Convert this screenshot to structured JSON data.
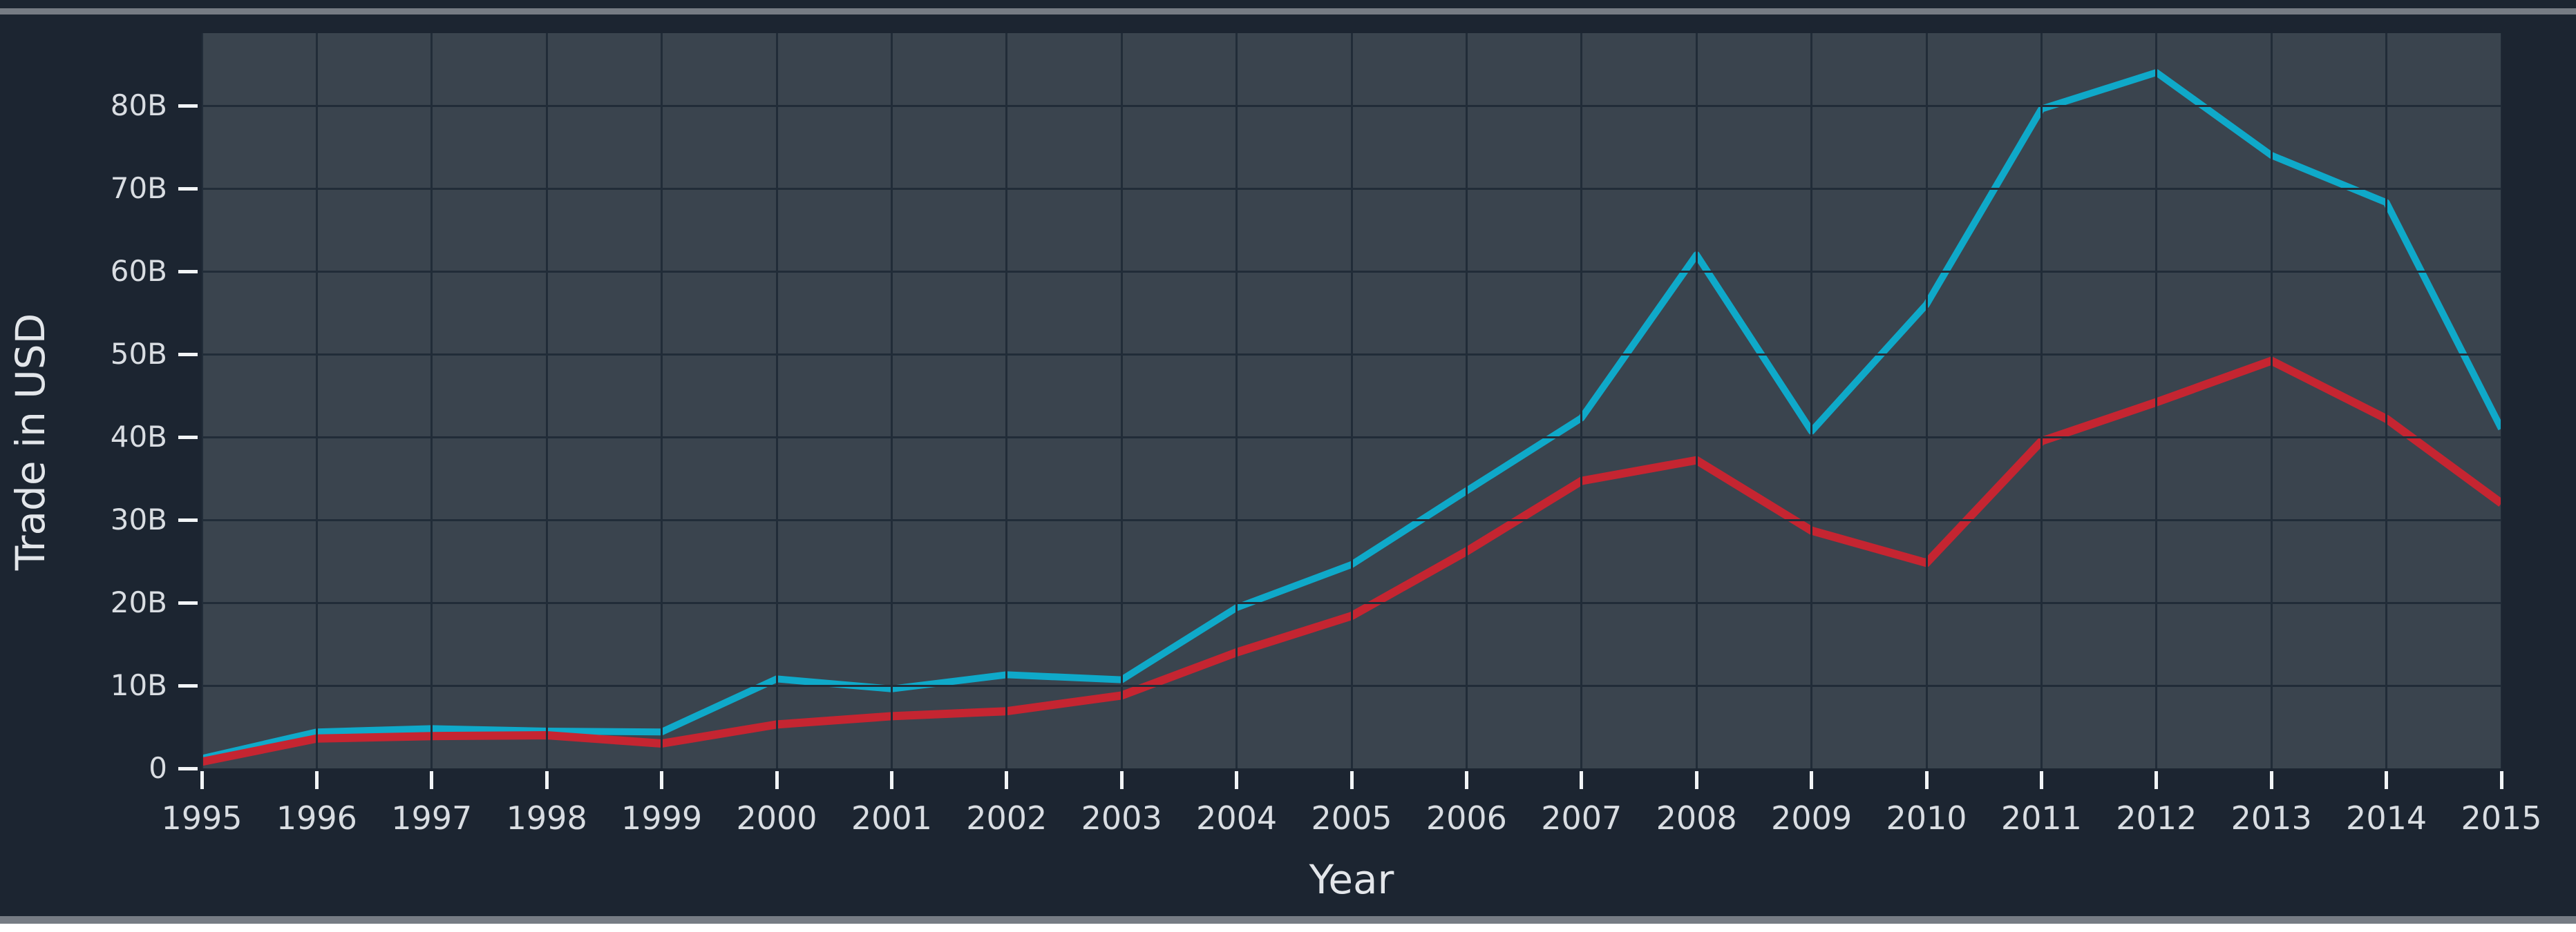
{
  "figure": {
    "background": "#1c2531",
    "plot_background": "#3a444e",
    "gridline_color": "#212c38",
    "tick_color": "#f2f5f7",
    "text_color": "#d9dde2",
    "border_strip_color": "#767c84"
  },
  "chart_data": {
    "type": "line",
    "title": "",
    "xlabel": "Year",
    "ylabel": "Trade in USD",
    "x": [
      1995,
      1996,
      1997,
      1998,
      1999,
      2000,
      2001,
      2002,
      2003,
      2004,
      2005,
      2006,
      2007,
      2008,
      2009,
      2010,
      2011,
      2012,
      2013,
      2014,
      2015
    ],
    "x_tick_labels": [
      "1995",
      "1996",
      "1997",
      "1998",
      "1999",
      "2000",
      "2001",
      "2002",
      "2003",
      "2004",
      "2005",
      "2006",
      "2007",
      "2008",
      "2009",
      "2010",
      "2011",
      "2012",
      "2013",
      "2014",
      "2015"
    ],
    "y_tick_labels": [
      "0",
      "10B",
      "20B",
      "30B",
      "40B",
      "50B",
      "60B",
      "70B",
      "80B"
    ],
    "y_tick_values": [
      0,
      10,
      20,
      30,
      40,
      50,
      60,
      70,
      80
    ],
    "ylim": [
      0,
      88.75
    ],
    "grid": true,
    "legend_position": "none",
    "units": "billions of USD",
    "series": [
      {
        "name": "series-1-cyan",
        "color": "#0fa9c9",
        "stroke_width": 10,
        "values": [
          1.2,
          4.4,
          4.8,
          4.5,
          4.4,
          10.8,
          9.6,
          11.3,
          10.7,
          19.4,
          24.6,
          33.5,
          42.3,
          62.0,
          40.7,
          56.0,
          79.6,
          84.0,
          74.0,
          68.3,
          41.0
        ]
      },
      {
        "name": "series-2-red",
        "color": "#c52531",
        "stroke_width": 12,
        "values": [
          0.8,
          3.6,
          3.9,
          4.0,
          3.0,
          5.3,
          6.3,
          6.9,
          8.8,
          14.0,
          18.4,
          26.2,
          34.7,
          37.2,
          28.7,
          24.8,
          39.5,
          44.2,
          49.2,
          42.2,
          32.0
        ]
      }
    ]
  }
}
